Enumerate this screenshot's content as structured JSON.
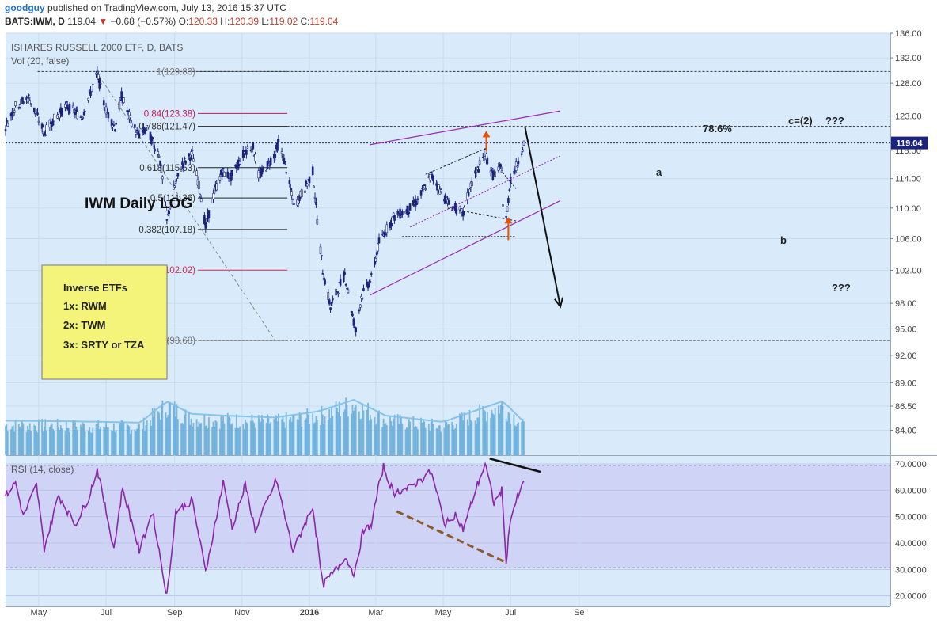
{
  "header": {
    "user": "goodguy",
    "published": "published on TradingView.com, July 13, 2016 15:37 UTC",
    "symbol": "BATS:IWM, D",
    "last": "119.04",
    "change": "−0.68 (−0.57%)",
    "o_label": "O:",
    "o": "120.33",
    "h_label": "H:",
    "h": "120.39",
    "l_label": "L:",
    "l": "119.02",
    "c_label": "C:",
    "c": "119.04"
  },
  "main_pane": {
    "title": "ISHARES RUSSELL 2000 ETF, D, BATS",
    "vol_label": "Vol (20, false)",
    "chart_label": "IWM Daily LOG",
    "price_tag": "119.04"
  },
  "inverse_box": {
    "title": "Inverse ETFs",
    "lines": [
      "1x:  RWM",
      "2x:  TWM",
      "3x:  SRTY or TZA"
    ]
  },
  "annotations": {
    "fib_786_pct": "78.6%",
    "wave_c": "c=(2)",
    "wave_c_q": "???",
    "wave_a": "a",
    "wave_b": "b",
    "target_q": "???"
  },
  "rsi_pane": {
    "label": "RSI (14, close)"
  },
  "colors": {
    "chart_bg": "#d9ebfb",
    "rsi_bg": "#cfd3f6",
    "candle": "#1a237e",
    "channel": "#9c27b0",
    "fib_gray": "#777777",
    "fib_red": "#d32f4f",
    "fib_pink": "#c2185b",
    "volume": "#5aa6d6",
    "rsi_line": "#8e24aa",
    "divergence": "#8d5a2b",
    "arrow_up": "#e65100",
    "note_bg": "#f4f47a",
    "price_tag": "#1a237e"
  },
  "chart_data": {
    "type": "candlestick",
    "scale": "log",
    "title": "ISHARES RUSSELL 2000 ETF, D, BATS",
    "ylim": [
      81.5,
      136.0
    ],
    "y_ticks": [
      "136.00",
      "132.00",
      "128.00",
      "123.00",
      "118.00",
      "114.00",
      "110.00",
      "106.00",
      "102.00",
      "98.00",
      "95.00",
      "92.00",
      "89.00",
      "86.50",
      "84.00"
    ],
    "x_ticks": [
      "May",
      "Jul",
      "Sep",
      "Nov",
      "2016",
      "Mar",
      "May",
      "Jul",
      "Se"
    ],
    "price_path": [
      [
        "2015-04-01",
        121.5
      ],
      [
        "2015-04-10",
        124.5
      ],
      [
        "2015-04-22",
        125.8
      ],
      [
        "2015-05-06",
        120.5
      ],
      [
        "2015-05-13",
        122.2
      ],
      [
        "2015-05-26",
        124.5
      ],
      [
        "2015-06-09",
        122.8
      ],
      [
        "2015-06-23",
        129.5
      ],
      [
        "2015-06-30",
        124.2
      ],
      [
        "2015-07-09",
        121.3
      ],
      [
        "2015-07-15",
        126.0
      ],
      [
        "2015-07-23",
        122.5
      ],
      [
        "2015-07-30",
        120.2
      ],
      [
        "2015-08-07",
        121.0
      ],
      [
        "2015-08-14",
        118.5
      ],
      [
        "2015-08-18",
        117.5
      ],
      [
        "2015-08-21",
        114.0
      ],
      [
        "2015-08-25",
        108.2
      ],
      [
        "2015-08-31",
        112.5
      ],
      [
        "2015-09-08",
        116.0
      ],
      [
        "2015-09-17",
        117.5
      ],
      [
        "2015-09-25",
        111.5
      ],
      [
        "2015-09-29",
        107.5
      ],
      [
        "2015-10-07",
        112.2
      ],
      [
        "2015-10-14",
        115.0
      ],
      [
        "2015-10-22",
        114.2
      ],
      [
        "2015-11-04",
        118.0
      ],
      [
        "2015-11-11",
        118.5
      ],
      [
        "2015-11-16",
        114.5
      ],
      [
        "2015-11-20",
        115.0
      ],
      [
        "2015-12-01",
        117.5
      ],
      [
        "2015-12-04",
        119.2
      ],
      [
        "2015-12-10",
        116.0
      ],
      [
        "2015-12-18",
        110.2
      ],
      [
        "2015-12-29",
        113.0
      ],
      [
        "2016-01-04",
        115.0
      ],
      [
        "2016-01-08",
        108.5
      ],
      [
        "2016-01-13",
        102.0
      ],
      [
        "2016-01-20",
        97.5
      ],
      [
        "2016-01-27",
        99.8
      ],
      [
        "2016-02-02",
        101.5
      ],
      [
        "2016-02-10",
        95.8
      ],
      [
        "2016-02-12",
        94.8
      ],
      [
        "2016-02-17",
        98.8
      ],
      [
        "2016-02-26",
        101.0
      ],
      [
        "2016-03-04",
        105.5
      ],
      [
        "2016-03-10",
        107.0
      ],
      [
        "2016-03-17",
        108.8
      ],
      [
        "2016-03-31",
        109.8
      ],
      [
        "2016-04-08",
        111.0
      ],
      [
        "2016-04-20",
        114.5
      ],
      [
        "2016-04-28",
        112.5
      ],
      [
        "2016-05-06",
        110.5
      ],
      [
        "2016-05-12",
        110.0
      ],
      [
        "2016-05-19",
        109.2
      ],
      [
        "2016-05-26",
        113.2
      ],
      [
        "2016-06-08",
        117.5
      ],
      [
        "2016-06-15",
        114.5
      ],
      [
        "2016-06-23",
        115.5
      ],
      [
        "2016-06-24",
        110.5
      ],
      [
        "2016-06-27",
        108.5
      ],
      [
        "2016-07-01",
        114.0
      ],
      [
        "2016-07-07",
        116.0
      ],
      [
        "2016-07-13",
        119.04
      ]
    ],
    "volume_path": [
      [
        "2015-04-01",
        0.47
      ],
      [
        "2015-06-01",
        0.46
      ],
      [
        "2015-08-01",
        0.44
      ],
      [
        "2015-08-25",
        0.78
      ],
      [
        "2015-09-15",
        0.58
      ],
      [
        "2015-10-15",
        0.55
      ],
      [
        "2015-12-01",
        0.52
      ],
      [
        "2016-01-10",
        0.62
      ],
      [
        "2016-02-10",
        0.8
      ],
      [
        "2016-03-10",
        0.55
      ],
      [
        "2016-05-01",
        0.45
      ],
      [
        "2016-06-24",
        0.78
      ],
      [
        "2016-07-13",
        0.45
      ]
    ],
    "rsi_path": [
      [
        "2015-04-01",
        58
      ],
      [
        "2015-04-10",
        63
      ],
      [
        "2015-04-17",
        50
      ],
      [
        "2015-04-29",
        62
      ],
      [
        "2015-05-06",
        38
      ],
      [
        "2015-05-19",
        58
      ],
      [
        "2015-06-03",
        47
      ],
      [
        "2015-06-15",
        57
      ],
      [
        "2015-06-23",
        68
      ],
      [
        "2015-07-08",
        38
      ],
      [
        "2015-07-16",
        61
      ],
      [
        "2015-07-31",
        37
      ],
      [
        "2015-08-12",
        52
      ],
      [
        "2015-08-25",
        20
      ],
      [
        "2015-09-02",
        52
      ],
      [
        "2015-09-17",
        56
      ],
      [
        "2015-09-29",
        29
      ],
      [
        "2015-10-15",
        63
      ],
      [
        "2015-10-23",
        46
      ],
      [
        "2015-11-04",
        62
      ],
      [
        "2015-11-13",
        45
      ],
      [
        "2015-12-02",
        64
      ],
      [
        "2015-12-17",
        37
      ],
      [
        "2016-01-04",
        54
      ],
      [
        "2016-01-13",
        24
      ],
      [
        "2016-01-27",
        31
      ],
      [
        "2016-02-02",
        35
      ],
      [
        "2016-02-11",
        28
      ],
      [
        "2016-02-18",
        44
      ],
      [
        "2016-02-26",
        47
      ],
      [
        "2016-03-04",
        62
      ],
      [
        "2016-03-08",
        69
      ],
      [
        "2016-03-17",
        59
      ],
      [
        "2016-04-01",
        61
      ],
      [
        "2016-04-20",
        67
      ],
      [
        "2016-05-03",
        47
      ],
      [
        "2016-05-12",
        51
      ],
      [
        "2016-05-19",
        45
      ],
      [
        "2016-05-31",
        61
      ],
      [
        "2016-06-08",
        70
      ],
      [
        "2016-06-16",
        55
      ],
      [
        "2016-06-23",
        60
      ],
      [
        "2016-06-27",
        33
      ],
      [
        "2016-07-01",
        50
      ],
      [
        "2016-07-08",
        58
      ],
      [
        "2016-07-13",
        63
      ]
    ],
    "rsi_ylim": [
      16,
      73
    ],
    "rsi_ticks": [
      "70.0000",
      "60.0000",
      "50.0000",
      "40.0000",
      "30.0000",
      "20.0000"
    ],
    "fib_levels": [
      {
        "label": "1(129.83)",
        "ratio": 1.0,
        "value": 129.83
      },
      {
        "label": "0.84(123.38)",
        "ratio": 0.84,
        "value": 123.38
      },
      {
        "label": "0.786(121.47)",
        "ratio": 0.786,
        "value": 121.47
      },
      {
        "label": "0.618(115.53)",
        "ratio": 0.618,
        "value": 115.53
      },
      {
        "label": "0.5(111.36)",
        "ratio": 0.5,
        "value": 111.36
      },
      {
        "label": "0.382(107.18)",
        "ratio": 0.382,
        "value": 107.18
      },
      {
        "label": "0.236(102.02)",
        "ratio": 0.236,
        "value": 102.02
      },
      {
        "label": "0(93.68)",
        "ratio": 0.0,
        "value": 93.68
      }
    ],
    "last_price": 119.04
  }
}
